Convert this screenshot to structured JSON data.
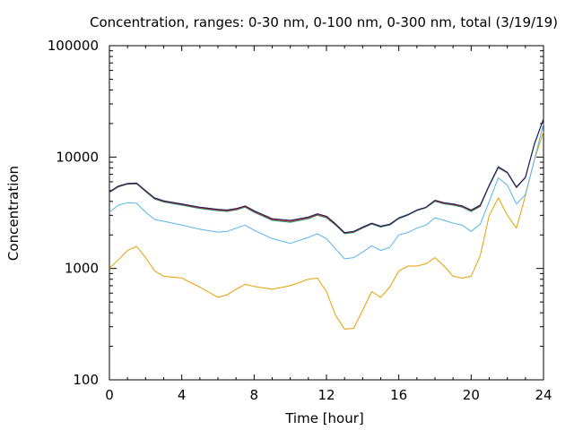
{
  "chart_data": {
    "type": "line",
    "title": "Concentration, ranges: 0-30 nm, 0-100 nm, 0-300 nm, total (3/19/19)",
    "xlabel": "Time [hour]",
    "ylabel": "Concentration",
    "xlim": [
      0,
      24
    ],
    "ylim": [
      100,
      100000
    ],
    "yscale": "log",
    "grid": false,
    "legend": "none",
    "x_ticks": [
      "0",
      "4",
      "8",
      "12",
      "16",
      "20",
      "24"
    ],
    "x_tick_values": [
      0,
      4,
      8,
      12,
      16,
      20,
      24
    ],
    "y_ticks": [
      "100",
      "1000",
      "10000",
      "100000"
    ],
    "y_tick_values": [
      100,
      1000,
      10000,
      100000
    ],
    "x": [
      0,
      0.5,
      1,
      1.5,
      2,
      2.5,
      3,
      4,
      5,
      6,
      6.5,
      7,
      7.5,
      8,
      9,
      10,
      11,
      11.5,
      12,
      12.5,
      13,
      13.5,
      14,
      14.5,
      15,
      15.5,
      16,
      16.5,
      17,
      17.5,
      18,
      18.5,
      19,
      19.5,
      20,
      20.5,
      21,
      21.5,
      22,
      22.5,
      23,
      23.5,
      24
    ],
    "series": [
      {
        "color": "#e69f00",
        "values": [
          1000,
          1200,
          1450,
          1580,
          1250,
          950,
          850,
          820,
          680,
          550,
          580,
          650,
          720,
          690,
          650,
          700,
          800,
          820,
          620,
          380,
          285,
          290,
          420,
          620,
          550,
          680,
          950,
          1050,
          1050,
          1100,
          1250,
          1050,
          850,
          820,
          850,
          1300,
          3000,
          4300,
          3000,
          2300,
          4500,
          9500,
          17000
        ]
      },
      {
        "color": "#56b4e9",
        "values": [
          3200,
          3700,
          3900,
          3850,
          3200,
          2750,
          2650,
          2450,
          2250,
          2120,
          2150,
          2300,
          2450,
          2200,
          1850,
          1680,
          1900,
          2050,
          1850,
          1500,
          1220,
          1250,
          1400,
          1600,
          1450,
          1550,
          2000,
          2100,
          2300,
          2450,
          2850,
          2700,
          2550,
          2450,
          2150,
          2500,
          4000,
          6500,
          5600,
          3800,
          4600,
          9500,
          20000
        ]
      },
      {
        "color": "#009e73",
        "values": [
          4800,
          5400,
          5700,
          5750,
          4900,
          4200,
          3950,
          3700,
          3450,
          3300,
          3250,
          3350,
          3550,
          3200,
          2700,
          2600,
          2800,
          3000,
          2850,
          2450,
          2050,
          2100,
          2300,
          2500,
          2350,
          2450,
          2800,
          3000,
          3300,
          3500,
          4000,
          3800,
          3700,
          3550,
          3250,
          3600,
          5500,
          8000,
          7200,
          5300,
          6500,
          13000,
          22000
        ]
      },
      {
        "color": "#e41a1c",
        "values": [
          4850,
          5450,
          5750,
          5800,
          4950,
          4250,
          4000,
          3750,
          3500,
          3350,
          3300,
          3400,
          3600,
          3250,
          2750,
          2650,
          2850,
          3050,
          2900,
          2480,
          2080,
          2130,
          2330,
          2530,
          2380,
          2480,
          2830,
          3030,
          3330,
          3530,
          4050,
          3850,
          3750,
          3600,
          3300,
          3650,
          5550,
          8100,
          7250,
          5350,
          6550,
          13100,
          22000
        ]
      },
      {
        "color": "#0a1f66",
        "values": [
          4900,
          5500,
          5800,
          5850,
          5000,
          4300,
          4050,
          3800,
          3550,
          3400,
          3350,
          3450,
          3650,
          3300,
          2800,
          2700,
          2900,
          3100,
          2950,
          2520,
          2100,
          2150,
          2350,
          2550,
          2400,
          2500,
          2850,
          3050,
          3350,
          3550,
          4100,
          3900,
          3800,
          3650,
          3350,
          3700,
          5600,
          8200,
          7300,
          5400,
          6600,
          13200,
          22100
        ]
      }
    ]
  }
}
